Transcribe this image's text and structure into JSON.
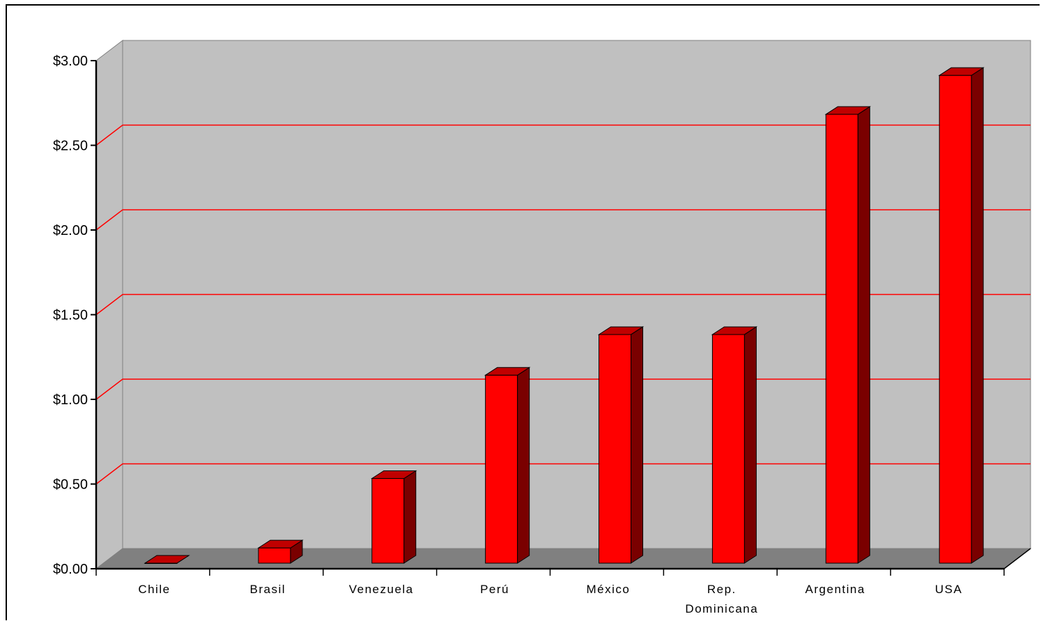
{
  "chart_data": {
    "type": "bar",
    "style": "3d-column",
    "categories": [
      "Chile",
      "Brasil",
      "Venezuela",
      "Perú",
      "México",
      "Rep. Dominicana",
      "Argentina",
      "USA"
    ],
    "category_label_lines": [
      [
        "Chile"
      ],
      [
        "Brasil"
      ],
      [
        "Venezuela"
      ],
      [
        "Perú"
      ],
      [
        "México"
      ],
      [
        "Rep.",
        "Dominicana"
      ],
      [
        "Argentina"
      ],
      [
        "USA"
      ]
    ],
    "values": [
      0.0,
      0.09,
      0.5,
      1.11,
      1.35,
      1.35,
      2.65,
      2.88
    ],
    "ylim": [
      0,
      3
    ],
    "y_ticks": [
      0,
      0.5,
      1,
      1.5,
      2,
      2.5,
      3
    ],
    "y_tick_labels": [
      "$0.00",
      "$0.50",
      "$1.00",
      "$1.50",
      "$2.00",
      "$2.50",
      "$3.00"
    ],
    "title": "",
    "xlabel": "",
    "ylabel": "",
    "grid": true,
    "legend": "none"
  },
  "colors": {
    "bar_front": "#ff0000",
    "bar_side": "#7a0000",
    "bar_top": "#c00000",
    "back_wall": "#c0c0c0",
    "floor": "#808080",
    "gridline": "#ff0000",
    "axis": "#000000"
  }
}
